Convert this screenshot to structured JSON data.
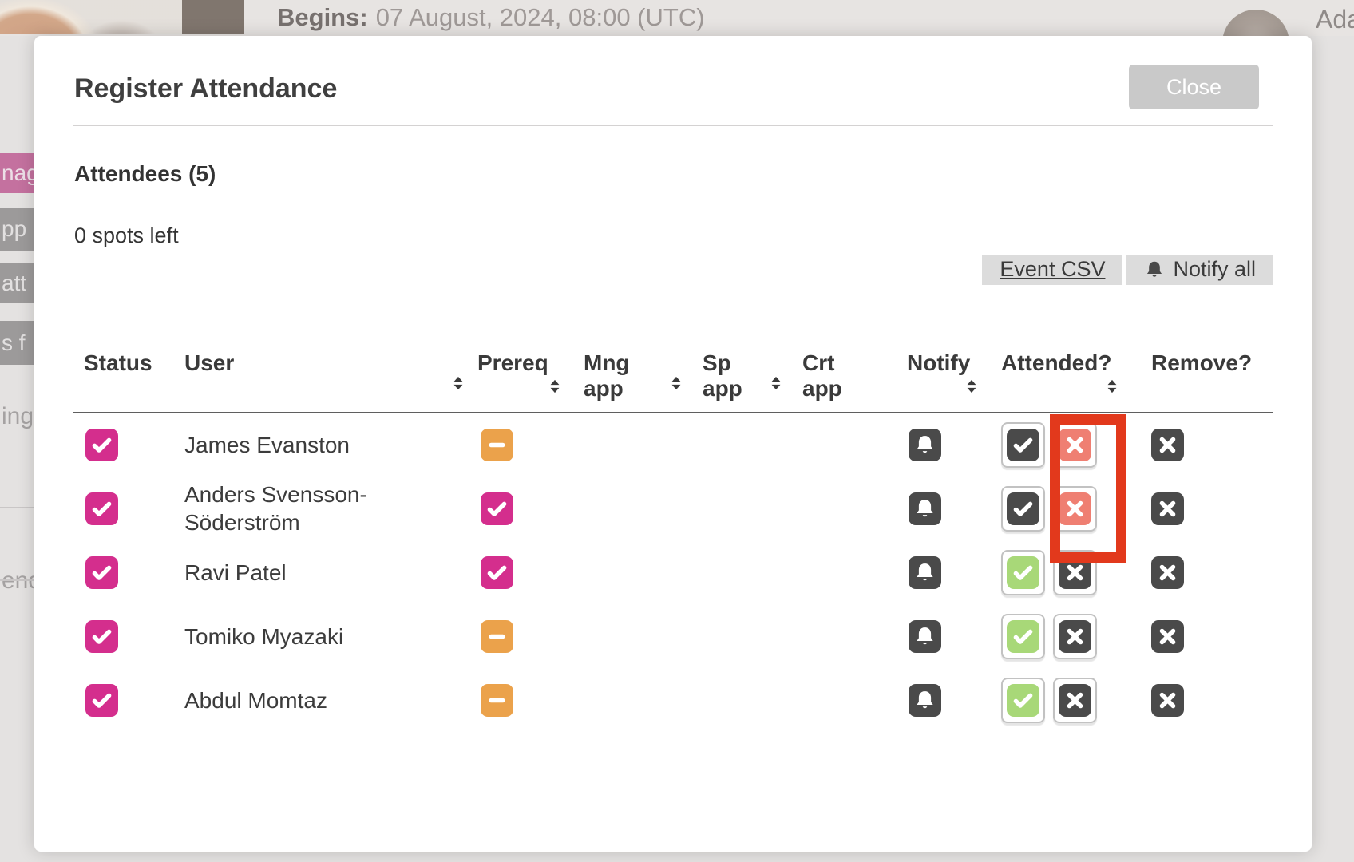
{
  "backdrop": {
    "begins_label": "Begins:",
    "begins_value": "07 August, 2024, 08:00 (UTC)",
    "user_name_fragment": "Ada",
    "sidebar_fragments": [
      {
        "label": "nag",
        "variant": "pink"
      },
      {
        "label": "pp",
        "variant": "gray"
      },
      {
        "label": "att",
        "variant": "gray"
      },
      {
        "label": "s f",
        "variant": "gray"
      },
      {
        "label": "ing",
        "variant": "text"
      },
      {
        "label": "end",
        "variant": "text"
      }
    ]
  },
  "modal": {
    "title": "Register Attendance",
    "close_label": "Close",
    "attendees_heading": "Attendees (5)",
    "spots_left": "0 spots left",
    "actions": {
      "event_csv_label": "Event CSV",
      "notify_all_label": "Notify all"
    },
    "table": {
      "columns": [
        {
          "label": "Status",
          "sort": "none"
        },
        {
          "label": "User",
          "sort": "right"
        },
        {
          "label": "Prereq",
          "sort": "below"
        },
        {
          "label": "Mng\napp",
          "sort": "right"
        },
        {
          "label": "Sp\napp",
          "sort": "right"
        },
        {
          "label": "Crt\napp",
          "sort": "none"
        },
        {
          "label": "Notify",
          "sort": "below"
        },
        {
          "label": "Attended?",
          "sort": "below"
        },
        {
          "label": "Remove?",
          "sort": "none"
        }
      ],
      "rows": [
        {
          "name": "James Evanston",
          "status": "checked",
          "prereq": "dash",
          "attended": "no"
        },
        {
          "name": "Anders Svensson-Söderström",
          "status": "checked",
          "prereq": "check",
          "attended": "no"
        },
        {
          "name": "Ravi Patel",
          "status": "checked",
          "prereq": "check",
          "attended": "yes"
        },
        {
          "name": "Tomiko Myazaki",
          "status": "checked",
          "prereq": "dash",
          "attended": "yes"
        },
        {
          "name": "Abdul Momtaz",
          "status": "checked",
          "prereq": "dash",
          "attended": "yes"
        }
      ]
    }
  },
  "colors": {
    "pink": "#d42e8d",
    "orange": "#eba24b",
    "green": "#a8d878",
    "salmon": "#ef7f72",
    "dark": "#4a4a4a",
    "highlight": "#e2391c"
  }
}
